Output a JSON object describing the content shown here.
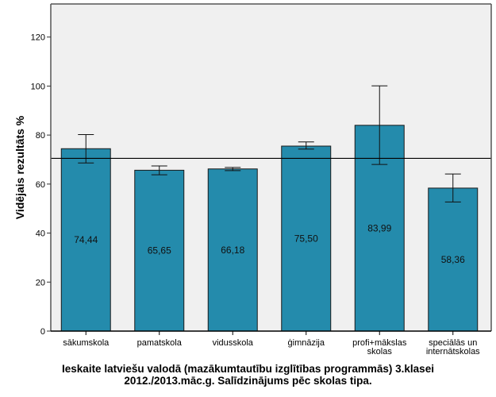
{
  "chart_data": {
    "type": "bar",
    "title": [
      "Ieskaite latviešu valodā (mazākumtautību izglītības programmās) 3.klasei",
      "2012./2013.māc.g. Salīdzinājums pēc skolas tipa."
    ],
    "xlabel": "",
    "ylabel": "Vidējais rezultāts %",
    "ylim": [
      0,
      133.5
    ],
    "yticks": [
      0,
      20,
      40,
      60,
      80,
      100,
      120
    ],
    "categories": [
      [
        "sākumskola"
      ],
      [
        "pamatskola"
      ],
      [
        "vidusskola"
      ],
      [
        "ģimnāzija"
      ],
      [
        "profi+mākslas",
        "skolas"
      ],
      [
        "speciālās un",
        "internātskolas"
      ]
    ],
    "values": [
      74.44,
      65.65,
      66.18,
      75.5,
      83.99,
      58.36
    ],
    "value_labels": [
      "74,44",
      "65,65",
      "66,18",
      "75,50",
      "83,99",
      "58,36"
    ],
    "error_low": [
      68.6,
      63.8,
      65.5,
      74.3,
      68.0,
      52.7
    ],
    "error_high": [
      80.2,
      67.4,
      66.8,
      77.2,
      100.1,
      64.1
    ],
    "reference_line": 70.5,
    "grid": false,
    "colors": {
      "bar": "#248bac",
      "plot_bg": "#f0f0f0",
      "frame": "#555555"
    }
  }
}
